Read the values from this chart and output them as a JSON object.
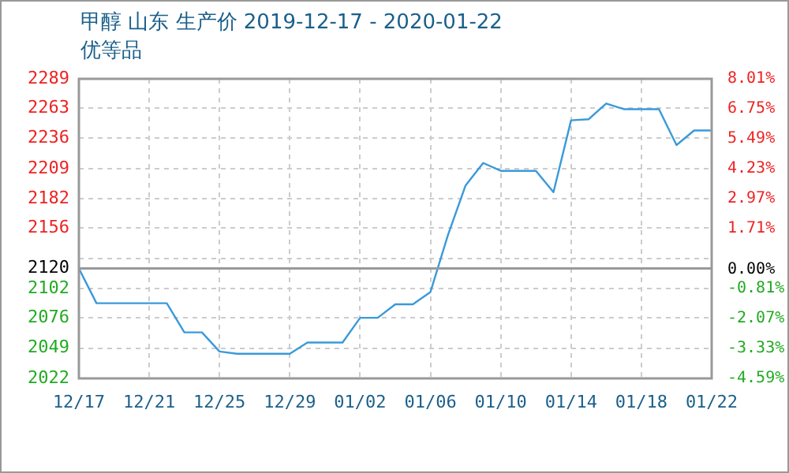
{
  "chart_data": {
    "type": "line",
    "title": "甲醇 山东 生产价 2019-12-17 - 2020-01-22",
    "subtitle": "优等品",
    "x": [
      "2019-12-17",
      "2019-12-18",
      "2019-12-22",
      "2019-12-23",
      "2019-12-24",
      "2019-12-25",
      "2019-12-26",
      "2019-12-29",
      "2019-12-30",
      "2020-01-01",
      "2020-01-02",
      "2020-01-03",
      "2020-01-04",
      "2020-01-05",
      "2020-01-06",
      "2020-01-07",
      "2020-01-08",
      "2020-01-09",
      "2020-01-10",
      "2020-01-12",
      "2020-01-13",
      "2020-01-14",
      "2020-01-15",
      "2020-01-16",
      "2020-01-17",
      "2020-01-19",
      "2020-01-20",
      "2020-01-21",
      "2020-01-22"
    ],
    "series": [
      {
        "color": "#3a9ad9",
        "values": [
          2120,
          2089,
          2089,
          2063,
          2063,
          2046,
          2044,
          2044,
          2054,
          2054,
          2076,
          2076,
          2088,
          2088,
          2099,
          2150,
          2194,
          2214,
          2207,
          2207,
          2188,
          2252,
          2253,
          2267,
          2262,
          2262,
          2230,
          2243,
          2243
        ]
      }
    ],
    "xlim": [
      "2019-12-17",
      "2020-01-22"
    ],
    "xticks": [
      {
        "value": "2019-12-17",
        "label": "12/17"
      },
      {
        "value": "2019-12-21",
        "label": "12/21"
      },
      {
        "value": "2019-12-25",
        "label": "12/25"
      },
      {
        "value": "2019-12-29",
        "label": "12/29"
      },
      {
        "value": "2020-01-02",
        "label": "01/02"
      },
      {
        "value": "2020-01-06",
        "label": "01/06"
      },
      {
        "value": "2020-01-10",
        "label": "01/10"
      },
      {
        "value": "2020-01-14",
        "label": "01/14"
      },
      {
        "value": "2020-01-18",
        "label": "01/18"
      },
      {
        "value": "2020-01-22",
        "label": "01/22"
      }
    ],
    "ylim": [
      2022,
      2289
    ],
    "yticks": [
      2289,
      2263,
      2236,
      2209,
      2182,
      2156,
      {
        "value": 2129,
        "label": null
      },
      2120,
      2102,
      2076,
      2049,
      2022
    ],
    "y2lim": [
      -4.59,
      8.01
    ],
    "y2ticks": [
      {
        "value": 8.01,
        "label": "8.01%"
      },
      {
        "value": 6.75,
        "label": "6.75%"
      },
      {
        "value": 5.49,
        "label": "5.49%"
      },
      {
        "value": 4.23,
        "label": "4.23%"
      },
      {
        "value": 2.97,
        "label": "2.97%"
      },
      {
        "value": 1.71,
        "label": "1.71%"
      },
      {
        "value": 0,
        "label": "0.00%"
      },
      {
        "value": -0.81,
        "label": "-0.81%"
      },
      {
        "value": -2.07,
        "label": "-2.07%"
      },
      {
        "value": -3.33,
        "label": "-3.33%"
      },
      {
        "value": -4.59,
        "label": "-4.59%"
      }
    ],
    "ref_lines": [
      {
        "axis": "y",
        "value": 2120,
        "color": "#999999"
      }
    ],
    "grid": true,
    "legend": false,
    "marker": "none",
    "line_style": "solid"
  }
}
